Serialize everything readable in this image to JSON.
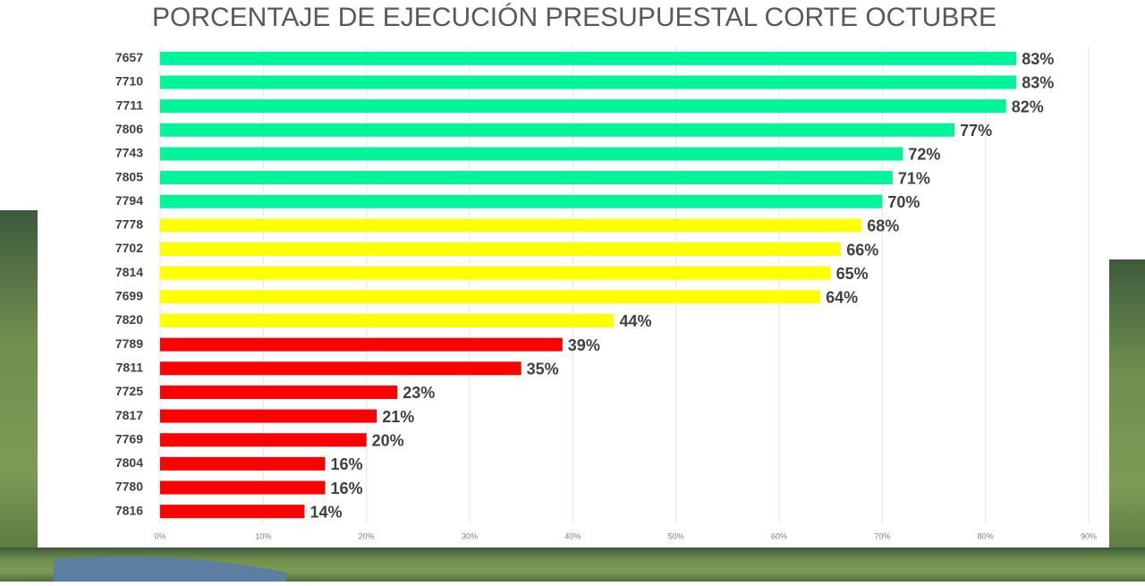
{
  "chart_data": {
    "type": "bar",
    "orientation": "horizontal",
    "title": "PORCENTAJE DE EJECUCIÓN PRESUPUESTAL CORTE OCTUBRE",
    "categories": [
      "7657",
      "7710",
      "7711",
      "7806",
      "7743",
      "7805",
      "7794",
      "7778",
      "7702",
      "7814",
      "7699",
      "7820",
      "7789",
      "7811",
      "7725",
      "7817",
      "7769",
      "7804",
      "7780",
      "7816"
    ],
    "values": [
      83,
      83,
      82,
      77,
      72,
      71,
      70,
      68,
      66,
      65,
      64,
      44,
      39,
      35,
      23,
      21,
      20,
      16,
      16,
      14
    ],
    "value_labels": [
      "83%",
      "83%",
      "82%",
      "77%",
      "72%",
      "71%",
      "70%",
      "68%",
      "66%",
      "65%",
      "64%",
      "44%",
      "39%",
      "35%",
      "23%",
      "21%",
      "20%",
      "16%",
      "16%",
      "14%"
    ],
    "colors": [
      "#00f59a",
      "#00f59a",
      "#00f59a",
      "#00f59a",
      "#00f59a",
      "#00f59a",
      "#00f59a",
      "#ffff00",
      "#ffff00",
      "#ffff00",
      "#ffff00",
      "#ffff00",
      "#ff0000",
      "#ff0000",
      "#ff0000",
      "#ff0000",
      "#ff0000",
      "#ff0000",
      "#ff0000",
      "#ff0000"
    ],
    "xlim": [
      0,
      90
    ],
    "xticks": [
      {
        "value": 0,
        "label": "0%"
      },
      {
        "value": 10,
        "label": "10%"
      },
      {
        "value": 20,
        "label": "20%"
      },
      {
        "value": 30,
        "label": "30%"
      },
      {
        "value": 40,
        "label": "40%"
      },
      {
        "value": 50,
        "label": "50%"
      },
      {
        "value": 60,
        "label": "60%"
      },
      {
        "value": 70,
        "label": "70%"
      },
      {
        "value": 80,
        "label": "80%"
      },
      {
        "value": 90,
        "label": "90%"
      }
    ],
    "grid": true
  }
}
